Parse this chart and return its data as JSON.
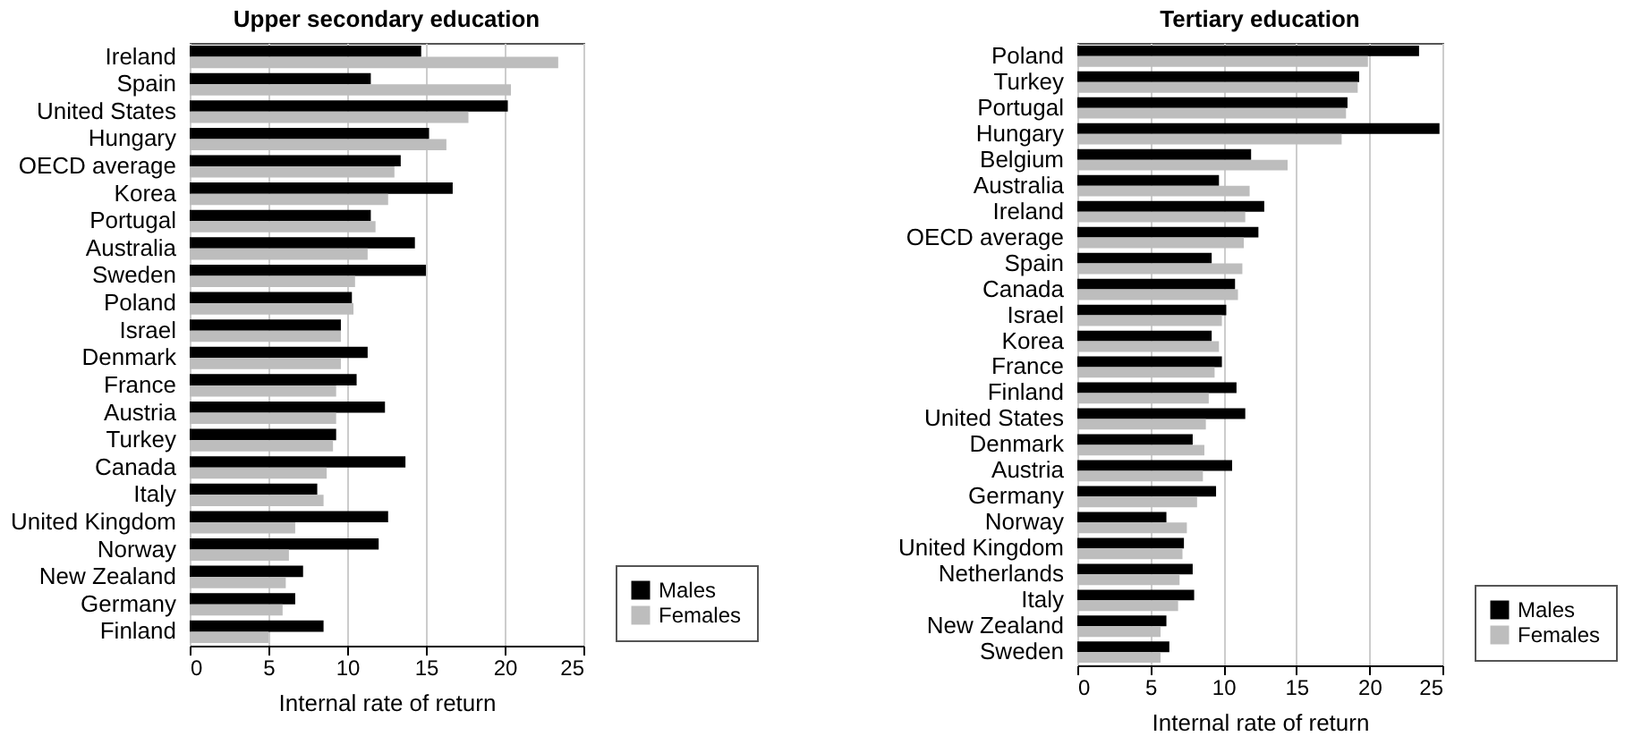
{
  "chart_data": [
    {
      "type": "bar",
      "orientation": "horizontal",
      "title": "Upper secondary education",
      "xlabel": "Internal rate of return",
      "categories": [
        "Ireland",
        "Spain",
        "United States",
        "Hungary",
        "OECD average",
        "Korea",
        "Portugal",
        "Australia",
        "Sweden",
        "Poland",
        "Israel",
        "Denmark",
        "France",
        "Austria",
        "Turkey",
        "Canada",
        "Italy",
        "United Kingdom",
        "Norway",
        "New Zealand",
        "Germany",
        "Finland"
      ],
      "series": [
        {
          "name": "Males",
          "color": "#000000",
          "values": [
            14.7,
            11.5,
            20.2,
            15.2,
            13.4,
            16.7,
            11.5,
            14.3,
            15.0,
            10.3,
            9.6,
            11.3,
            10.6,
            12.4,
            9.3,
            13.7,
            8.1,
            12.6,
            12.0,
            7.2,
            6.7,
            8.5
          ]
        },
        {
          "name": "Females",
          "color": "#bdbdbd",
          "values": [
            23.4,
            20.4,
            17.7,
            16.3,
            13.0,
            12.6,
            11.8,
            11.3,
            10.5,
            10.4,
            9.6,
            9.6,
            9.3,
            9.3,
            9.1,
            8.7,
            8.5,
            6.7,
            6.3,
            6.1,
            5.9,
            5.0
          ]
        }
      ],
      "xlim": [
        0,
        25
      ],
      "xticks": [
        0,
        5,
        10,
        15,
        20,
        25
      ],
      "grid": "x",
      "legend": "bottom right"
    },
    {
      "type": "bar",
      "orientation": "horizontal",
      "title": "Tertiary education",
      "xlabel": "Internal rate of return",
      "categories": [
        "Poland",
        "Turkey",
        "Portugal",
        "Hungary",
        "Belgium",
        "Australia",
        "Ireland",
        "OECD average",
        "Spain",
        "Canada",
        "Israel",
        "Korea",
        "France",
        "Finland",
        "United States",
        "Denmark",
        "Austria",
        "Germany",
        "Norway",
        "United Kingdom",
        "Netherlands",
        "Italy",
        "New Zealand",
        "Sweden"
      ],
      "series": [
        {
          "name": "Males",
          "color": "#000000",
          "values": [
            23.4,
            19.3,
            18.5,
            24.8,
            11.9,
            9.7,
            12.8,
            12.4,
            9.2,
            10.8,
            10.2,
            9.2,
            9.9,
            10.9,
            11.5,
            7.9,
            10.6,
            9.5,
            6.1,
            7.3,
            7.9,
            8.0,
            6.1,
            6.3
          ]
        },
        {
          "name": "Females",
          "color": "#bdbdbd",
          "values": [
            19.9,
            19.2,
            18.4,
            18.1,
            14.4,
            11.8,
            11.5,
            11.4,
            11.3,
            11.0,
            9.9,
            9.7,
            9.4,
            9.0,
            8.8,
            8.7,
            8.6,
            8.2,
            7.5,
            7.2,
            7.0,
            6.9,
            5.7,
            5.7
          ]
        }
      ],
      "xlim": [
        0,
        25
      ],
      "xticks": [
        0,
        5,
        10,
        15,
        20,
        25
      ],
      "grid": "x",
      "legend": "bottom right"
    }
  ]
}
